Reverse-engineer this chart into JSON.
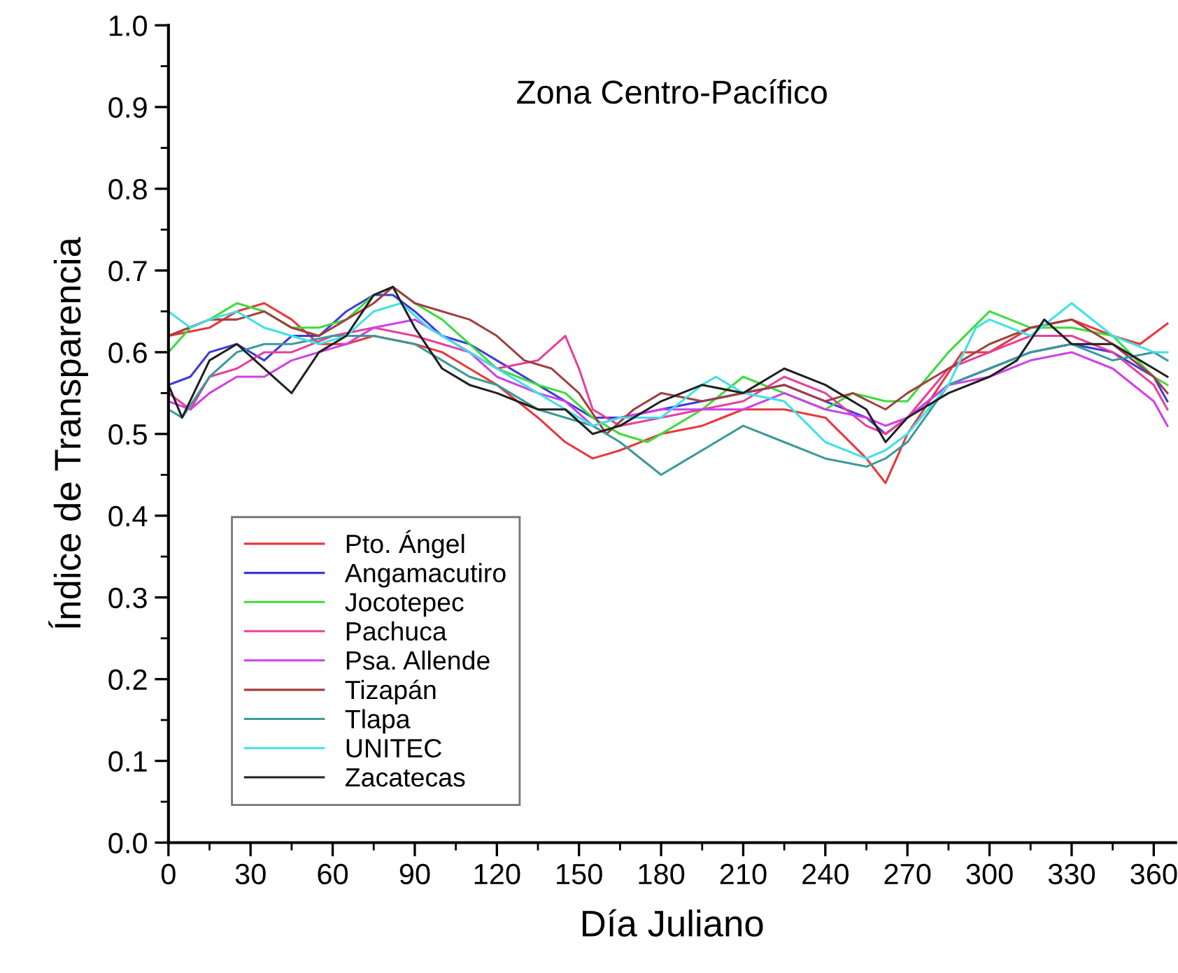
{
  "chart_data": {
    "type": "line",
    "title": "Zona Centro-Pacífico",
    "xlabel": "Día Juliano",
    "ylabel": "Índice de Transparencia",
    "xlim": [
      0,
      368
    ],
    "xticks": [
      0,
      30,
      60,
      90,
      120,
      150,
      180,
      210,
      240,
      270,
      300,
      330,
      360
    ],
    "ylim": [
      0,
      1.0
    ],
    "yticks": [
      {
        "value": 0,
        "label": "0.0"
      },
      0.1,
      0.2,
      0.3,
      0.4,
      0.5,
      0.6,
      0.7,
      0.8,
      0.9,
      {
        "value": 1.0,
        "label": "1.0"
      }
    ],
    "grid": false,
    "legend": "bottom left",
    "marker": "none",
    "line_style": "solid",
    "series": [
      {
        "name": "Pto. Ángel",
        "color": "#e8383c",
        "x": [
          0,
          15,
          25,
          35,
          45,
          55,
          65,
          75,
          90,
          100,
          110,
          120,
          135,
          145,
          155,
          165,
          180,
          195,
          210,
          225,
          240,
          255,
          262,
          270,
          280,
          290,
          300,
          315,
          330,
          345,
          355,
          365
        ],
        "values": [
          0.62,
          0.63,
          0.65,
          0.66,
          0.64,
          0.61,
          0.61,
          0.62,
          0.61,
          0.6,
          0.58,
          0.56,
          0.52,
          0.49,
          0.47,
          0.48,
          0.5,
          0.51,
          0.53,
          0.53,
          0.52,
          0.47,
          0.44,
          0.5,
          0.55,
          0.6,
          0.6,
          0.63,
          0.64,
          0.62,
          0.61,
          0.635
        ]
      },
      {
        "name": "Angamacutiro",
        "color": "#3b3bdc",
        "x": [
          0,
          8,
          15,
          25,
          35,
          45,
          55,
          65,
          75,
          82,
          90,
          100,
          110,
          120,
          135,
          145,
          155,
          165,
          180,
          195,
          210,
          225,
          240,
          255,
          262,
          270,
          285,
          300,
          315,
          330,
          345,
          360,
          365
        ],
        "values": [
          0.56,
          0.57,
          0.6,
          0.61,
          0.59,
          0.62,
          0.62,
          0.65,
          0.67,
          0.67,
          0.65,
          0.62,
          0.61,
          0.59,
          0.56,
          0.54,
          0.52,
          0.52,
          0.53,
          0.54,
          0.55,
          0.56,
          0.54,
          0.52,
          0.5,
          0.52,
          0.56,
          0.58,
          0.6,
          0.61,
          0.6,
          0.57,
          0.54
        ]
      },
      {
        "name": "Jocotepec",
        "color": "#3cdc3c",
        "x": [
          0,
          8,
          15,
          25,
          35,
          45,
          55,
          65,
          75,
          82,
          90,
          100,
          110,
          120,
          135,
          145,
          155,
          165,
          175,
          180,
          195,
          210,
          225,
          240,
          250,
          262,
          270,
          285,
          300,
          315,
          330,
          345,
          360,
          365
        ],
        "values": [
          0.6,
          0.63,
          0.64,
          0.66,
          0.65,
          0.63,
          0.63,
          0.64,
          0.67,
          0.68,
          0.66,
          0.64,
          0.61,
          0.58,
          0.56,
          0.55,
          0.52,
          0.5,
          0.49,
          0.5,
          0.53,
          0.57,
          0.55,
          0.53,
          0.55,
          0.54,
          0.54,
          0.6,
          0.65,
          0.63,
          0.63,
          0.62,
          0.57,
          0.56
        ]
      },
      {
        "name": "Pachuca",
        "color": "#e8409a",
        "x": [
          0,
          8,
          15,
          25,
          35,
          45,
          60,
          75,
          90,
          100,
          110,
          120,
          135,
          145,
          150,
          155,
          165,
          180,
          195,
          210,
          225,
          240,
          255,
          262,
          270,
          285,
          300,
          315,
          330,
          345,
          360,
          365
        ],
        "values": [
          0.55,
          0.53,
          0.57,
          0.58,
          0.6,
          0.6,
          0.62,
          0.63,
          0.62,
          0.61,
          0.6,
          0.58,
          0.59,
          0.62,
          0.58,
          0.53,
          0.51,
          0.52,
          0.53,
          0.54,
          0.57,
          0.55,
          0.51,
          0.5,
          0.52,
          0.58,
          0.6,
          0.62,
          0.62,
          0.6,
          0.56,
          0.53
        ]
      },
      {
        "name": "Psa. Allende",
        "color": "#d040e8",
        "x": [
          0,
          8,
          15,
          25,
          35,
          45,
          55,
          65,
          75,
          90,
          100,
          110,
          120,
          135,
          145,
          155,
          165,
          180,
          195,
          210,
          225,
          240,
          255,
          262,
          270,
          285,
          300,
          315,
          330,
          345,
          360,
          365
        ],
        "values": [
          0.54,
          0.53,
          0.55,
          0.57,
          0.57,
          0.59,
          0.6,
          0.61,
          0.63,
          0.64,
          0.62,
          0.6,
          0.57,
          0.55,
          0.54,
          0.51,
          0.52,
          0.53,
          0.53,
          0.53,
          0.55,
          0.53,
          0.52,
          0.51,
          0.52,
          0.56,
          0.57,
          0.59,
          0.6,
          0.58,
          0.54,
          0.51
        ]
      },
      {
        "name": "Tizapán",
        "color": "#a04040",
        "x": [
          0,
          15,
          25,
          35,
          45,
          55,
          65,
          75,
          82,
          90,
          100,
          110,
          120,
          130,
          140,
          150,
          160,
          170,
          180,
          195,
          210,
          225,
          240,
          250,
          262,
          270,
          285,
          300,
          315,
          330,
          345,
          360,
          365
        ],
        "values": [
          0.62,
          0.64,
          0.64,
          0.65,
          0.63,
          0.62,
          0.64,
          0.66,
          0.68,
          0.66,
          0.65,
          0.64,
          0.62,
          0.59,
          0.58,
          0.55,
          0.5,
          0.53,
          0.55,
          0.54,
          0.55,
          0.56,
          0.54,
          0.55,
          0.53,
          0.55,
          0.58,
          0.61,
          0.63,
          0.64,
          0.61,
          0.57,
          0.55
        ]
      },
      {
        "name": "Tlapa",
        "color": "#3c9a9a",
        "x": [
          0,
          5,
          15,
          25,
          35,
          45,
          60,
          75,
          90,
          100,
          110,
          120,
          135,
          145,
          155,
          165,
          180,
          190,
          200,
          210,
          225,
          240,
          255,
          262,
          270,
          285,
          300,
          315,
          330,
          345,
          360,
          365
        ],
        "values": [
          0.53,
          0.52,
          0.57,
          0.6,
          0.61,
          0.61,
          0.62,
          0.62,
          0.61,
          0.59,
          0.57,
          0.56,
          0.53,
          0.52,
          0.51,
          0.49,
          0.45,
          0.47,
          0.49,
          0.51,
          0.49,
          0.47,
          0.46,
          0.47,
          0.49,
          0.56,
          0.58,
          0.6,
          0.61,
          0.59,
          0.6,
          0.59
        ]
      },
      {
        "name": "UNITEC",
        "color": "#40e0e8",
        "x": [
          0,
          8,
          15,
          25,
          35,
          45,
          55,
          65,
          75,
          85,
          95,
          110,
          120,
          135,
          145,
          155,
          165,
          180,
          195,
          200,
          210,
          225,
          240,
          255,
          262,
          270,
          285,
          295,
          300,
          315,
          330,
          345,
          360,
          365
        ],
        "values": [
          0.65,
          0.63,
          0.64,
          0.65,
          0.63,
          0.62,
          0.61,
          0.62,
          0.65,
          0.66,
          0.63,
          0.6,
          0.58,
          0.55,
          0.53,
          0.51,
          0.52,
          0.52,
          0.56,
          0.57,
          0.55,
          0.54,
          0.49,
          0.47,
          0.48,
          0.5,
          0.56,
          0.63,
          0.64,
          0.62,
          0.66,
          0.62,
          0.6,
          0.6
        ]
      },
      {
        "name": "Zacatecas",
        "color": "#202020",
        "x": [
          0,
          5,
          15,
          25,
          35,
          45,
          55,
          65,
          75,
          82,
          90,
          100,
          110,
          120,
          135,
          145,
          155,
          165,
          180,
          195,
          210,
          225,
          240,
          255,
          262,
          270,
          285,
          300,
          310,
          320,
          330,
          345,
          360,
          365
        ],
        "values": [
          0.56,
          0.52,
          0.59,
          0.61,
          0.58,
          0.55,
          0.6,
          0.62,
          0.67,
          0.68,
          0.63,
          0.58,
          0.56,
          0.55,
          0.53,
          0.53,
          0.5,
          0.51,
          0.54,
          0.56,
          0.55,
          0.58,
          0.56,
          0.53,
          0.49,
          0.52,
          0.55,
          0.57,
          0.59,
          0.64,
          0.61,
          0.61,
          0.58,
          0.57
        ]
      }
    ]
  }
}
